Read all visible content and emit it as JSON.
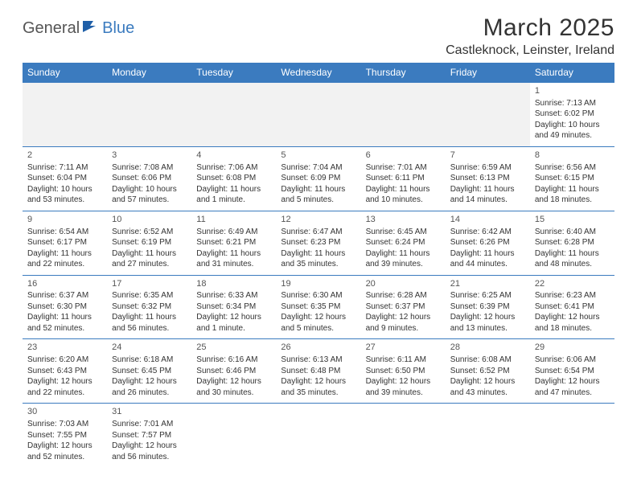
{
  "logo": {
    "part1": "General",
    "part2": "Blue"
  },
  "title": "March 2025",
  "location": "Castleknock, Leinster, Ireland",
  "colors": {
    "header_bg": "#3b7bbf",
    "header_text": "#ffffff",
    "border": "#3b7bbf",
    "blank_bg": "#f2f2f2",
    "text": "#333333",
    "logo_gray": "#555555",
    "logo_blue": "#3b7bbf"
  },
  "day_headers": [
    "Sunday",
    "Monday",
    "Tuesday",
    "Wednesday",
    "Thursday",
    "Friday",
    "Saturday"
  ],
  "weeks": [
    [
      null,
      null,
      null,
      null,
      null,
      null,
      {
        "n": "1",
        "sr": "Sunrise: 7:13 AM",
        "ss": "Sunset: 6:02 PM",
        "d1": "Daylight: 10 hours",
        "d2": "and 49 minutes."
      }
    ],
    [
      {
        "n": "2",
        "sr": "Sunrise: 7:11 AM",
        "ss": "Sunset: 6:04 PM",
        "d1": "Daylight: 10 hours",
        "d2": "and 53 minutes."
      },
      {
        "n": "3",
        "sr": "Sunrise: 7:08 AM",
        "ss": "Sunset: 6:06 PM",
        "d1": "Daylight: 10 hours",
        "d2": "and 57 minutes."
      },
      {
        "n": "4",
        "sr": "Sunrise: 7:06 AM",
        "ss": "Sunset: 6:08 PM",
        "d1": "Daylight: 11 hours",
        "d2": "and 1 minute."
      },
      {
        "n": "5",
        "sr": "Sunrise: 7:04 AM",
        "ss": "Sunset: 6:09 PM",
        "d1": "Daylight: 11 hours",
        "d2": "and 5 minutes."
      },
      {
        "n": "6",
        "sr": "Sunrise: 7:01 AM",
        "ss": "Sunset: 6:11 PM",
        "d1": "Daylight: 11 hours",
        "d2": "and 10 minutes."
      },
      {
        "n": "7",
        "sr": "Sunrise: 6:59 AM",
        "ss": "Sunset: 6:13 PM",
        "d1": "Daylight: 11 hours",
        "d2": "and 14 minutes."
      },
      {
        "n": "8",
        "sr": "Sunrise: 6:56 AM",
        "ss": "Sunset: 6:15 PM",
        "d1": "Daylight: 11 hours",
        "d2": "and 18 minutes."
      }
    ],
    [
      {
        "n": "9",
        "sr": "Sunrise: 6:54 AM",
        "ss": "Sunset: 6:17 PM",
        "d1": "Daylight: 11 hours",
        "d2": "and 22 minutes."
      },
      {
        "n": "10",
        "sr": "Sunrise: 6:52 AM",
        "ss": "Sunset: 6:19 PM",
        "d1": "Daylight: 11 hours",
        "d2": "and 27 minutes."
      },
      {
        "n": "11",
        "sr": "Sunrise: 6:49 AM",
        "ss": "Sunset: 6:21 PM",
        "d1": "Daylight: 11 hours",
        "d2": "and 31 minutes."
      },
      {
        "n": "12",
        "sr": "Sunrise: 6:47 AM",
        "ss": "Sunset: 6:23 PM",
        "d1": "Daylight: 11 hours",
        "d2": "and 35 minutes."
      },
      {
        "n": "13",
        "sr": "Sunrise: 6:45 AM",
        "ss": "Sunset: 6:24 PM",
        "d1": "Daylight: 11 hours",
        "d2": "and 39 minutes."
      },
      {
        "n": "14",
        "sr": "Sunrise: 6:42 AM",
        "ss": "Sunset: 6:26 PM",
        "d1": "Daylight: 11 hours",
        "d2": "and 44 minutes."
      },
      {
        "n": "15",
        "sr": "Sunrise: 6:40 AM",
        "ss": "Sunset: 6:28 PM",
        "d1": "Daylight: 11 hours",
        "d2": "and 48 minutes."
      }
    ],
    [
      {
        "n": "16",
        "sr": "Sunrise: 6:37 AM",
        "ss": "Sunset: 6:30 PM",
        "d1": "Daylight: 11 hours",
        "d2": "and 52 minutes."
      },
      {
        "n": "17",
        "sr": "Sunrise: 6:35 AM",
        "ss": "Sunset: 6:32 PM",
        "d1": "Daylight: 11 hours",
        "d2": "and 56 minutes."
      },
      {
        "n": "18",
        "sr": "Sunrise: 6:33 AM",
        "ss": "Sunset: 6:34 PM",
        "d1": "Daylight: 12 hours",
        "d2": "and 1 minute."
      },
      {
        "n": "19",
        "sr": "Sunrise: 6:30 AM",
        "ss": "Sunset: 6:35 PM",
        "d1": "Daylight: 12 hours",
        "d2": "and 5 minutes."
      },
      {
        "n": "20",
        "sr": "Sunrise: 6:28 AM",
        "ss": "Sunset: 6:37 PM",
        "d1": "Daylight: 12 hours",
        "d2": "and 9 minutes."
      },
      {
        "n": "21",
        "sr": "Sunrise: 6:25 AM",
        "ss": "Sunset: 6:39 PM",
        "d1": "Daylight: 12 hours",
        "d2": "and 13 minutes."
      },
      {
        "n": "22",
        "sr": "Sunrise: 6:23 AM",
        "ss": "Sunset: 6:41 PM",
        "d1": "Daylight: 12 hours",
        "d2": "and 18 minutes."
      }
    ],
    [
      {
        "n": "23",
        "sr": "Sunrise: 6:20 AM",
        "ss": "Sunset: 6:43 PM",
        "d1": "Daylight: 12 hours",
        "d2": "and 22 minutes."
      },
      {
        "n": "24",
        "sr": "Sunrise: 6:18 AM",
        "ss": "Sunset: 6:45 PM",
        "d1": "Daylight: 12 hours",
        "d2": "and 26 minutes."
      },
      {
        "n": "25",
        "sr": "Sunrise: 6:16 AM",
        "ss": "Sunset: 6:46 PM",
        "d1": "Daylight: 12 hours",
        "d2": "and 30 minutes."
      },
      {
        "n": "26",
        "sr": "Sunrise: 6:13 AM",
        "ss": "Sunset: 6:48 PM",
        "d1": "Daylight: 12 hours",
        "d2": "and 35 minutes."
      },
      {
        "n": "27",
        "sr": "Sunrise: 6:11 AM",
        "ss": "Sunset: 6:50 PM",
        "d1": "Daylight: 12 hours",
        "d2": "and 39 minutes."
      },
      {
        "n": "28",
        "sr": "Sunrise: 6:08 AM",
        "ss": "Sunset: 6:52 PM",
        "d1": "Daylight: 12 hours",
        "d2": "and 43 minutes."
      },
      {
        "n": "29",
        "sr": "Sunrise: 6:06 AM",
        "ss": "Sunset: 6:54 PM",
        "d1": "Daylight: 12 hours",
        "d2": "and 47 minutes."
      }
    ],
    [
      {
        "n": "30",
        "sr": "Sunrise: 7:03 AM",
        "ss": "Sunset: 7:55 PM",
        "d1": "Daylight: 12 hours",
        "d2": "and 52 minutes."
      },
      {
        "n": "31",
        "sr": "Sunrise: 7:01 AM",
        "ss": "Sunset: 7:57 PM",
        "d1": "Daylight: 12 hours",
        "d2": "and 56 minutes."
      },
      null,
      null,
      null,
      null,
      null
    ]
  ]
}
